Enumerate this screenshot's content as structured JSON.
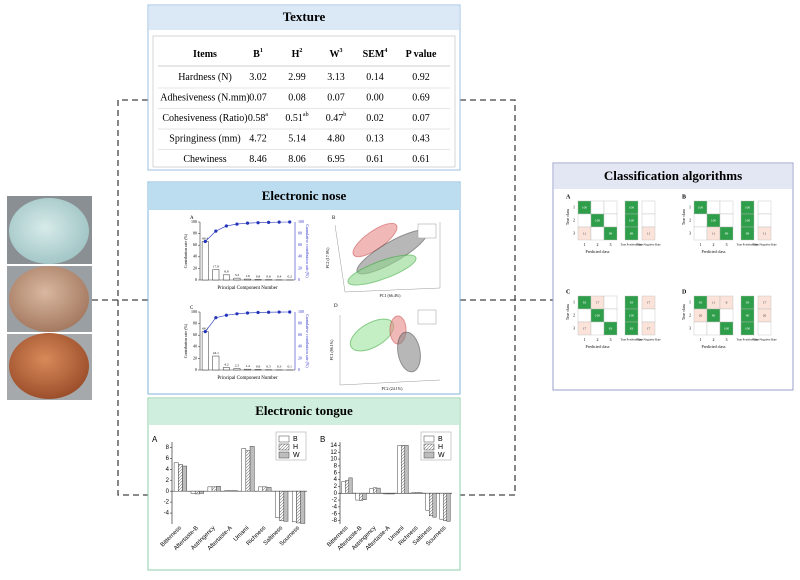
{
  "texture": {
    "title": "Texture",
    "headers": [
      {
        "text": "Items"
      },
      {
        "text": "B",
        "sup": "1"
      },
      {
        "text": "H",
        "sup": "2"
      },
      {
        "text": "W",
        "sup": "3"
      },
      {
        "text": "SEM",
        "sup": "4"
      },
      {
        "text": "P value"
      }
    ],
    "rows": [
      [
        {
          "text": "Hardness (N)"
        },
        {
          "text": "3.02"
        },
        {
          "text": "2.99"
        },
        {
          "text": "3.13"
        },
        {
          "text": "0.14"
        },
        {
          "text": "0.92"
        }
      ],
      [
        {
          "text": "Adhesiveness (N.mm)"
        },
        {
          "text": "0.07"
        },
        {
          "text": "0.08"
        },
        {
          "text": "0.07"
        },
        {
          "text": "0.00"
        },
        {
          "text": "0.69"
        }
      ],
      [
        {
          "text": "Cohesiveness (Ratio)"
        },
        {
          "text": "0.58",
          "sup": "a"
        },
        {
          "text": "0.51",
          "sup": "ab"
        },
        {
          "text": "0.47",
          "sup": "b"
        },
        {
          "text": "0.02"
        },
        {
          "text": "0.07"
        }
      ],
      [
        {
          "text": "Springiness (mm)"
        },
        {
          "text": "4.72"
        },
        {
          "text": "5.14"
        },
        {
          "text": "4.80"
        },
        {
          "text": "0.13"
        },
        {
          "text": "0.43"
        }
      ],
      [
        {
          "text": "Chewiness"
        },
        {
          "text": "8.46"
        },
        {
          "text": "8.06"
        },
        {
          "text": "6.95"
        },
        {
          "text": "0.61"
        },
        {
          "text": "0.61"
        }
      ]
    ]
  },
  "nose": {
    "title": "Electronic nose",
    "charts": [
      {
        "label": "A",
        "xlabel": "Principal Component Number",
        "ylabel": "Contribution rate (%)",
        "y2label": "Cumulative contribution rate (%)",
        "values": [
          66.4,
          17.9,
          8.9,
          3.2,
          1.6,
          0.8,
          0.6,
          0.4,
          0.2
        ],
        "cumulative": [
          66.4,
          84.3,
          93.2,
          96.4,
          98.0,
          98.8,
          99.4,
          99.8,
          100
        ],
        "ylim": [
          0,
          100
        ],
        "yticks": [
          0,
          20,
          40,
          60,
          80,
          100
        ]
      },
      {
        "label": "C",
        "xlabel": "Principal Component Number",
        "ylabel": "Contribution rate (%)",
        "y2label": "Cumulative contribution rate (%)",
        "values": [
          66.1,
          24.1,
          4.2,
          2.5,
          1.4,
          0.8,
          0.5,
          0.3,
          0.1
        ],
        "cumulative": [
          66.1,
          90.2,
          94.4,
          96.9,
          98.3,
          99.1,
          99.6,
          99.9,
          100
        ],
        "ylim": [
          0,
          100
        ],
        "yticks": [
          0,
          20,
          40,
          60,
          80,
          100
        ]
      }
    ],
    "pca": [
      {
        "label": "B",
        "xlabel": "PC1 (66.4%)",
        "ylabel": "PC2 (17.9%)"
      },
      {
        "label": "D",
        "xlabel": "PC2 (24.1%)",
        "ylabel": "PC1 (66.1%)"
      }
    ]
  },
  "tongue": {
    "title": "Electronic tongue",
    "charts": [
      {
        "label": "A",
        "categories": [
          "Bitterness",
          "Aftertaste-B",
          "Astringency",
          "Aftertaste-A",
          "Umami",
          "Richness",
          "Saltiness",
          "Sourness"
        ],
        "series": [
          {
            "name": "B",
            "color": "#ffffff",
            "values": [
              5.2,
              -0.4,
              0.8,
              0.1,
              7.8,
              0.8,
              -4.8,
              -5.6
            ]
          },
          {
            "name": "H",
            "color": "#e4e4e4",
            "values": [
              4.9,
              -0.5,
              0.8,
              0.1,
              7.4,
              0.8,
              -5.4,
              -5.8
            ]
          },
          {
            "name": "W",
            "color": "#bdbdbd",
            "values": [
              4.6,
              -0.4,
              0.9,
              0.1,
              8.2,
              0.7,
              -5.5,
              -5.9
            ]
          }
        ],
        "ylim": [
          -6,
          9
        ],
        "yticks": [
          -4,
          -2,
          0,
          2,
          4,
          6,
          8
        ]
      },
      {
        "label": "B",
        "categories": [
          "Bitterness",
          "Aftertaste-B",
          "Astringency",
          "Aftertaste-A",
          "Umami",
          "Richness",
          "Saltiness",
          "Sourness"
        ],
        "series": [
          {
            "name": "B",
            "color": "#ffffff",
            "values": [
              3.4,
              -2.0,
              1.4,
              -0.2,
              14,
              0.2,
              -5.0,
              -7.6
            ]
          },
          {
            "name": "H",
            "color": "#e4e4e4",
            "values": [
              3.7,
              -2.1,
              1.6,
              -0.2,
              14,
              0.2,
              -6.6,
              -8.0
            ]
          },
          {
            "name": "W",
            "color": "#bdbdbd",
            "values": [
              4.5,
              -1.9,
              1.5,
              -0.2,
              14,
              0.2,
              -7.0,
              -8.2
            ]
          }
        ],
        "ylim": [
          -9,
          15
        ],
        "yticks": [
          -8,
          -6,
          -4,
          -2,
          0,
          2,
          4,
          6,
          8,
          10,
          12,
          14
        ]
      }
    ]
  },
  "classification": {
    "title": "Classification algorithms",
    "row_label": "True class",
    "col_label": "Predicted class",
    "rate_labels": [
      "True Positive Rate",
      "False Negative Rate"
    ],
    "class_labels": [
      "1",
      "2",
      "3"
    ],
    "matrices": [
      {
        "label": "A",
        "cells": [
          [
            100,
            null,
            null
          ],
          [
            null,
            100,
            null
          ],
          [
            11,
            null,
            89
          ]
        ],
        "tpr": [
          100,
          100,
          89
        ],
        "fnr": [
          null,
          null,
          11
        ]
      },
      {
        "label": "B",
        "cells": [
          [
            100,
            null,
            null
          ],
          [
            null,
            100,
            null
          ],
          [
            null,
            11,
            89
          ]
        ],
        "tpr": [
          100,
          100,
          89
        ],
        "fnr": [
          null,
          null,
          11
        ]
      },
      {
        "label": "C",
        "cells": [
          [
            83,
            17,
            null
          ],
          [
            null,
            100,
            null
          ],
          [
            17,
            null,
            83
          ]
        ],
        "tpr": [
          83,
          100,
          83
        ],
        "fnr": [
          17,
          null,
          17
        ]
      },
      {
        "label": "D",
        "cells": [
          [
            83,
            11,
            6
          ],
          [
            20,
            80,
            null
          ],
          [
            null,
            null,
            100
          ]
        ],
        "tpr": [
          83,
          80,
          100
        ],
        "fnr": [
          17,
          20,
          null
        ]
      }
    ]
  }
}
